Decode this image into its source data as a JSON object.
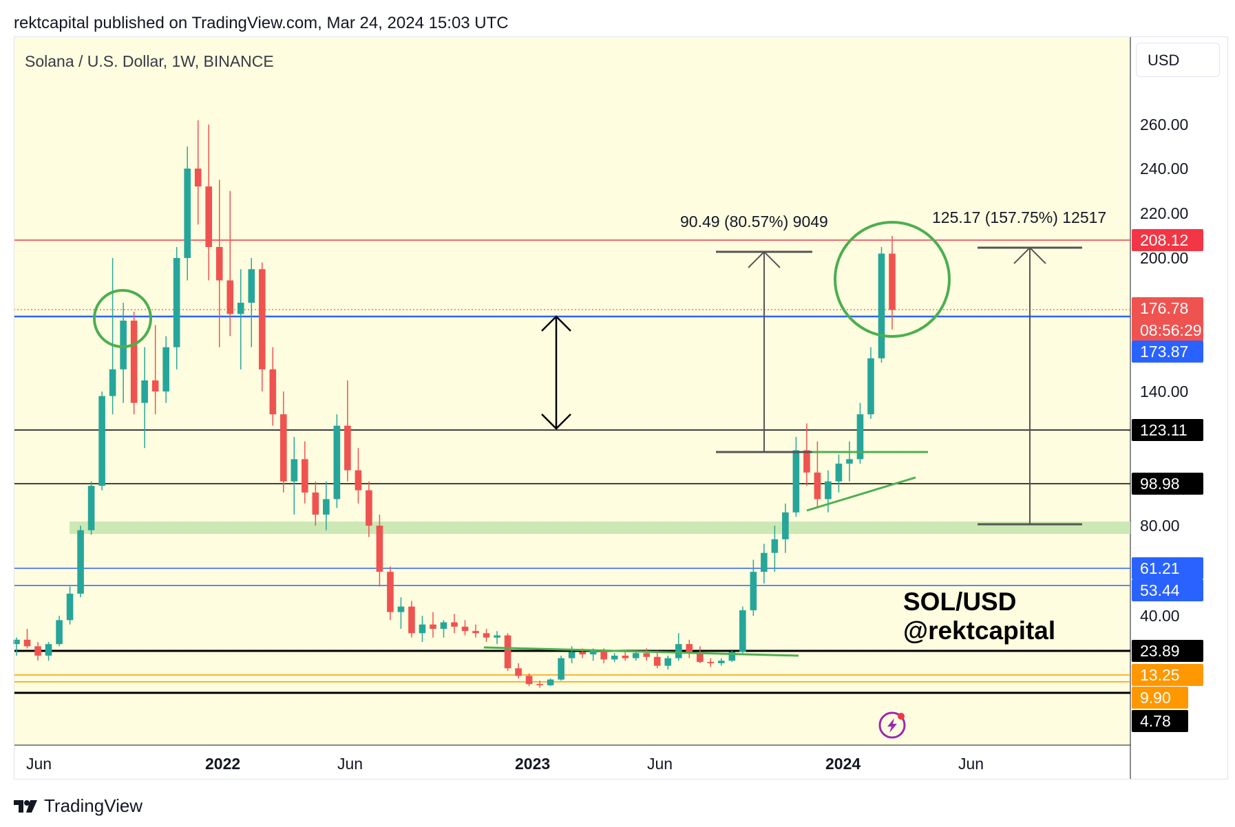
{
  "header": {
    "text": "rektcapital published on TradingView.com, Mar 24, 2024 15:03 UTC"
  },
  "symbol_title": "Solana / U.S. Dollar, 1W, BINANCE",
  "currency": "USD",
  "footer": {
    "logo_text": "TradingView"
  },
  "colors": {
    "background": "#fffde0",
    "up": "#26a69a",
    "down": "#ef5350",
    "zone": "#c8e6b0"
  },
  "icon": "lightning-icon",
  "chart_data": {
    "type": "candlestick",
    "x_ticks": [
      "Jun",
      "2022",
      "Jun",
      "2023",
      "Jun",
      "2024",
      "Jun"
    ],
    "y_ticks": [
      "260.00",
      "240.00",
      "220.00",
      "200.00",
      "140.00",
      "80.00",
      "40.00"
    ],
    "levels": [
      {
        "label": "208.12",
        "value": 208.12,
        "color": "#f23645",
        "style": "line"
      },
      {
        "label": "176.78",
        "value": 176.78,
        "color": "#ef5350",
        "style": "dotted",
        "countdown": "08:56:29"
      },
      {
        "label": "173.87",
        "value": 173.87,
        "color": "#2962ff",
        "style": "line"
      },
      {
        "label": "123.11",
        "value": 123.11,
        "color": "#000000",
        "style": "line"
      },
      {
        "label": "98.98",
        "value": 98.98,
        "color": "#000000",
        "style": "line"
      },
      {
        "label": "61.21",
        "value": 61.21,
        "color": "#2962ff",
        "style": "line"
      },
      {
        "label": "53.44",
        "value": 53.44,
        "color": "#2962ff",
        "style": "line"
      },
      {
        "label": "23.89",
        "value": 23.89,
        "color": "#000000",
        "style": "thick"
      },
      {
        "label": "13.25",
        "value": 13.25,
        "color": "#ff9800",
        "style": "line"
      },
      {
        "label": "9.90",
        "value": 9.9,
        "color": "#ff9800",
        "style": "line"
      },
      {
        "label": "4.78",
        "value": 4.78,
        "color": "#000000",
        "style": "thick"
      }
    ],
    "annotations": [
      {
        "text": "90.49 (80.57%) 9049"
      },
      {
        "text": "125.17 (157.75%) 12517"
      },
      {
        "text": "SOL/USD"
      },
      {
        "text": "@rektcapital"
      }
    ],
    "candles": [
      [
        27,
        30,
        22,
        29
      ],
      [
        29,
        34,
        25,
        26
      ],
      [
        26,
        28,
        20,
        22
      ],
      [
        22,
        28,
        20,
        27
      ],
      [
        27,
        40,
        26,
        38
      ],
      [
        38,
        55,
        36,
        52
      ],
      [
        52,
        80,
        50,
        78
      ],
      [
        78,
        100,
        76,
        98
      ],
      [
        98,
        140,
        96,
        138
      ],
      [
        138,
        200,
        130,
        150
      ],
      [
        150,
        180,
        135,
        172
      ],
      [
        172,
        176,
        130,
        135
      ],
      [
        135,
        160,
        115,
        145
      ],
      [
        145,
        170,
        130,
        140
      ],
      [
        140,
        165,
        135,
        160
      ],
      [
        160,
        205,
        150,
        200
      ],
      [
        200,
        250,
        190,
        240
      ],
      [
        240,
        262,
        215,
        232
      ],
      [
        232,
        260,
        190,
        205
      ],
      [
        205,
        235,
        160,
        190
      ],
      [
        190,
        230,
        165,
        175
      ],
      [
        175,
        195,
        150,
        180
      ],
      [
        180,
        200,
        160,
        195
      ],
      [
        195,
        198,
        140,
        150
      ],
      [
        150,
        160,
        125,
        130
      ],
      [
        130,
        140,
        95,
        100
      ],
      [
        100,
        120,
        85,
        110
      ],
      [
        110,
        118,
        90,
        95
      ],
      [
        95,
        100,
        80,
        85
      ],
      [
        85,
        100,
        78,
        92
      ],
      [
        92,
        130,
        88,
        125
      ],
      [
        125,
        145,
        100,
        105
      ],
      [
        105,
        115,
        90,
        96
      ],
      [
        96,
        100,
        75,
        80
      ],
      [
        80,
        85,
        55,
        60
      ],
      [
        60,
        62,
        38,
        42
      ],
      [
        42,
        50,
        34,
        45
      ],
      [
        45,
        48,
        30,
        32
      ],
      [
        32,
        40,
        28,
        36
      ],
      [
        36,
        42,
        30,
        34
      ],
      [
        34,
        38,
        30,
        37
      ],
      [
        37,
        41,
        32,
        35
      ],
      [
        35,
        38,
        31,
        33
      ],
      [
        33,
        36,
        30,
        32
      ],
      [
        32,
        34,
        28,
        30
      ],
      [
        30,
        33,
        27,
        31
      ],
      [
        31,
        32,
        16,
        17
      ],
      [
        17,
        19,
        13,
        14
      ],
      [
        14,
        15,
        9.5,
        10.5
      ],
      [
        10.5,
        12,
        8.5,
        10
      ],
      [
        10,
        13,
        9.5,
        12.5
      ],
      [
        12.5,
        22,
        12,
        21
      ],
      [
        21,
        26,
        19,
        23.5
      ],
      [
        23.5,
        25,
        21,
        22.5
      ],
      [
        22.5,
        25,
        20,
        24
      ],
      [
        24,
        25,
        19,
        20.5
      ],
      [
        20.5,
        23,
        19.5,
        22
      ],
      [
        22,
        23.5,
        20,
        21
      ],
      [
        21,
        24,
        20,
        23
      ],
      [
        23,
        25,
        20,
        21.5
      ],
      [
        21.5,
        24,
        17,
        18
      ],
      [
        18,
        22,
        16.5,
        21
      ],
      [
        21,
        32,
        20,
        27
      ],
      [
        27,
        29,
        21,
        23
      ],
      [
        23,
        26,
        19,
        19.5
      ],
      [
        19.5,
        21,
        17.5,
        19
      ],
      [
        19,
        21,
        18,
        20
      ],
      [
        20,
        24,
        19.5,
        23.5
      ],
      [
        23.5,
        45,
        23,
        43
      ],
      [
        43,
        65,
        40,
        60
      ],
      [
        60,
        72,
        56,
        68
      ],
      [
        68,
        80,
        60,
        74
      ],
      [
        74,
        90,
        68,
        86
      ],
      [
        86,
        120,
        84,
        114
      ],
      [
        114,
        126,
        98,
        104
      ],
      [
        104,
        118,
        88,
        92
      ],
      [
        92,
        105,
        86,
        100
      ],
      [
        100,
        112,
        95,
        108
      ],
      [
        108,
        118,
        100,
        110
      ],
      [
        110,
        135,
        108,
        130
      ],
      [
        130,
        160,
        128,
        155
      ],
      [
        155,
        205,
        153,
        202
      ],
      [
        202,
        210,
        168,
        176.78
      ]
    ]
  }
}
